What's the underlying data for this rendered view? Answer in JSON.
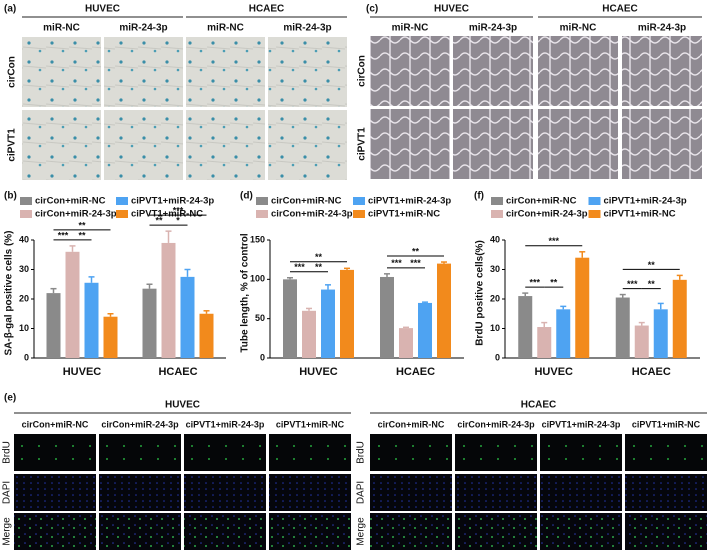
{
  "panel_a": {
    "label": "(a)",
    "groups": [
      "HUVEC",
      "HCAEC"
    ],
    "columns": [
      "miR-NC",
      "miR-24-3p",
      "miR-NC",
      "miR-24-3p"
    ],
    "rows": [
      "cirCon",
      "ciPVT1"
    ]
  },
  "panel_c": {
    "label": "(c)",
    "groups": [
      "HUVEC",
      "HCAEC"
    ],
    "columns": [
      "miR-NC",
      "miR-24-3p",
      "miR-NC",
      "miR-24-3p"
    ],
    "rows": [
      "cirCon",
      "ciPVT1"
    ]
  },
  "panel_e": {
    "label": "(e)",
    "groups": [
      {
        "name": "HUVEC",
        "columns": [
          "cirCon+miR-NC",
          "cirCon+miR-24-3p",
          "ciPVT1+miR-24-3p",
          "ciPVT1+miR-NC"
        ],
        "rows": [
          "BrdU",
          "DAPI",
          "Merge"
        ]
      },
      {
        "name": "HCAEC",
        "columns": [
          "cirCon+miR-NC",
          "cirCon+miR-24-3p",
          "ciPVT1+miR-24-3p",
          "ciPVT1+miR-NC"
        ],
        "rows": [
          "BrdU",
          "DAPI",
          "Merge"
        ]
      }
    ]
  },
  "chart_data": [
    {
      "type": "bar",
      "label": "(b)",
      "ylabel": "SA-β-gal positive cells (%)",
      "categories": [
        "HUVEC",
        "HCAEC"
      ],
      "series": [
        {
          "name": "cirCon+miR-NC",
          "color": "#8a8a8a",
          "values": [
            22,
            23.5
          ],
          "errors": [
            1.5,
            1.5
          ]
        },
        {
          "name": "cirCon+miR-24-3p",
          "color": "#d9b3b0",
          "values": [
            36,
            39
          ],
          "errors": [
            2,
            4
          ]
        },
        {
          "name": "ciPVT1+miR-24-3p",
          "color": "#4ea3f2",
          "values": [
            25.5,
            27.5
          ],
          "errors": [
            2,
            2.5
          ]
        },
        {
          "name": "ciPVT1+miR-NC",
          "color": "#f28a1c",
          "values": [
            14,
            15
          ],
          "errors": [
            1,
            1
          ]
        }
      ],
      "ylim": [
        0,
        40
      ],
      "yticks": [
        0,
        10,
        20,
        30,
        40
      ],
      "annotations": [
        [
          "**",
          "***",
          "**"
        ],
        [
          "***",
          "**",
          "*"
        ]
      ]
    },
    {
      "type": "bar",
      "label": "(d)",
      "ylabel": "Tube length, % of control",
      "categories": [
        "HUVEC",
        "HCAEC"
      ],
      "series": [
        {
          "name": "cirCon+miR-NC",
          "color": "#8a8a8a",
          "values": [
            100,
            103
          ],
          "errors": [
            2,
            4
          ]
        },
        {
          "name": "cirCon+miR-24-3p",
          "color": "#d9b3b0",
          "values": [
            60,
            38
          ],
          "errors": [
            3,
            1
          ]
        },
        {
          "name": "ciPVT1+miR-24-3p",
          "color": "#4ea3f2",
          "values": [
            87,
            70
          ],
          "errors": [
            6,
            1
          ]
        },
        {
          "name": "ciPVT1+miR-NC",
          "color": "#f28a1c",
          "values": [
            112,
            120
          ],
          "errors": [
            2,
            2
          ]
        }
      ],
      "ylim": [
        0,
        150
      ],
      "yticks": [
        0,
        50,
        100,
        150
      ],
      "annotations": [
        [
          "**",
          "***",
          "**"
        ],
        [
          "**",
          "***",
          "***"
        ]
      ]
    },
    {
      "type": "bar",
      "label": "(f)",
      "ylabel": "BrdU positive cells(%)",
      "categories": [
        "HUVEC",
        "HCAEC"
      ],
      "series": [
        {
          "name": "cirCon+miR-NC",
          "color": "#8a8a8a",
          "values": [
            21,
            20.5
          ],
          "errors": [
            1,
            1
          ]
        },
        {
          "name": "cirCon+miR-24-3p",
          "color": "#d9b3b0",
          "values": [
            10.5,
            11
          ],
          "errors": [
            1.5,
            1
          ]
        },
        {
          "name": "ciPVT1+miR-24-3p",
          "color": "#4ea3f2",
          "values": [
            16.5,
            16.5
          ],
          "errors": [
            1,
            2
          ]
        },
        {
          "name": "ciPVT1+miR-NC",
          "color": "#f28a1c",
          "values": [
            34,
            26.5
          ],
          "errors": [
            2,
            1.5
          ]
        }
      ],
      "ylim": [
        0,
        40
      ],
      "yticks": [
        0,
        10,
        20,
        30,
        40
      ],
      "annotations": [
        [
          "***",
          "***",
          "**"
        ],
        [
          "**",
          "***",
          "**"
        ]
      ]
    }
  ]
}
